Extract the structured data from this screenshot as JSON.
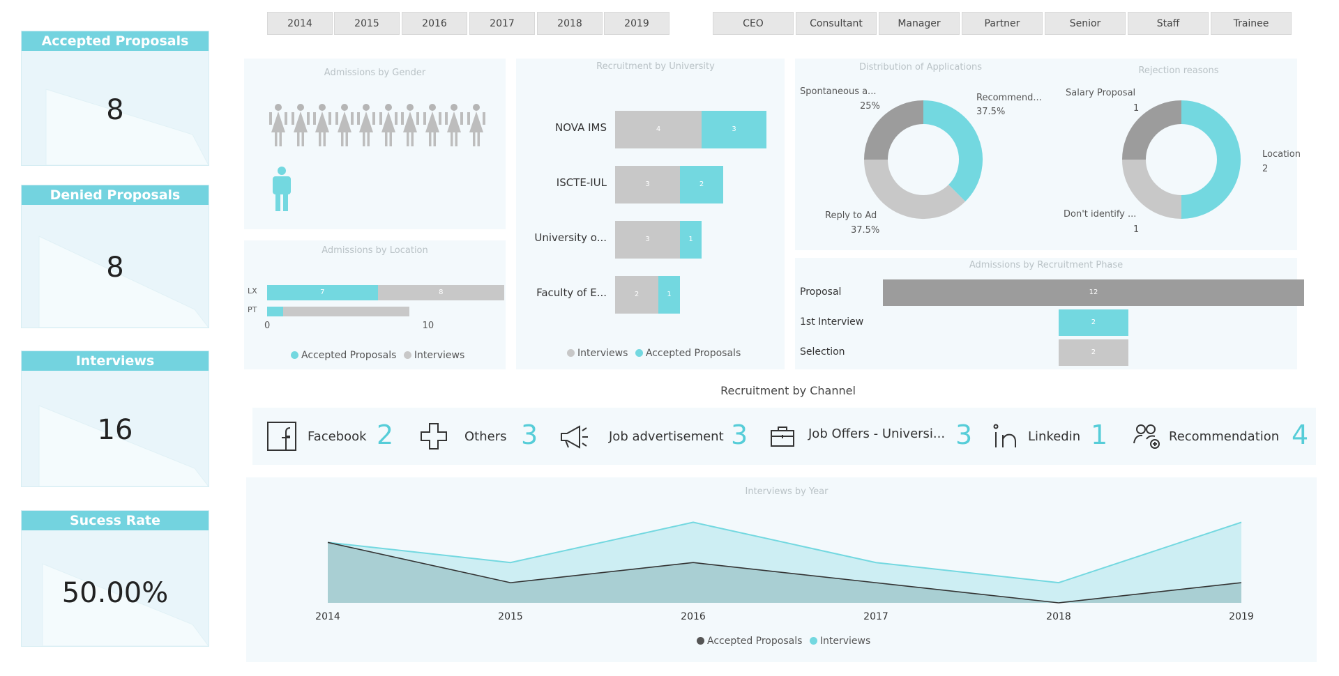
{
  "kpis": [
    {
      "title": "Accepted Proposals",
      "value": "8"
    },
    {
      "title": "Denied Proposals",
      "value": "8"
    },
    {
      "title": "Interviews",
      "value": "16"
    },
    {
      "title": "Sucess Rate",
      "value": "50.00%"
    }
  ],
  "year_filters": [
    "2014",
    "2015",
    "2016",
    "2017",
    "2018",
    "2019"
  ],
  "role_filters": [
    "CEO",
    "Consultant",
    "Manager",
    "Partner",
    "Senior",
    "Staff",
    "Trainee"
  ],
  "colors": {
    "teal": "#73d8e0",
    "grey": "#c8c8c8",
    "dark_grey": "#9c9c9c",
    "line": "#333333"
  },
  "gender_panel": {
    "title": "Admissions by Gender",
    "female_count": 10,
    "male_count": 1
  },
  "location_panel": {
    "title": "Admissions by Location",
    "legend": [
      "Accepted Proposals",
      "Interviews"
    ],
    "x_ticks": [
      "0",
      "10"
    ]
  },
  "university_panel": {
    "title": "Recruitment by University",
    "legend": [
      "Interviews",
      "Accepted Proposals"
    ]
  },
  "channel_title": "Recruitment by Channel",
  "channels": [
    {
      "icon": "facebook-icon",
      "label": "Facebook",
      "value": "2"
    },
    {
      "icon": "plus-icon",
      "label": "Others",
      "value": "3"
    },
    {
      "icon": "megaphone-icon",
      "label": "Job advertisement",
      "value": "3"
    },
    {
      "icon": "briefcase-icon",
      "label": "Job Offers - Universi...",
      "value": "3"
    },
    {
      "icon": "linkedin-icon",
      "label": "Linkedin",
      "value": "1"
    },
    {
      "icon": "people-icon",
      "label": "Recommendation",
      "value": "4"
    }
  ],
  "line_panel": {
    "title": "Interviews by Year",
    "legend": [
      "Accepted Proposals",
      "Interviews"
    ]
  },
  "chart_data": [
    {
      "type": "bar",
      "title": "Admissions by Location",
      "orientation": "horizontal",
      "stacked": true,
      "categories": [
        "LX",
        "PT"
      ],
      "series": [
        {
          "name": "Accepted Proposals",
          "values": [
            7,
            1
          ]
        },
        {
          "name": "Interviews",
          "values": [
            8,
            8
          ]
        }
      ],
      "xlim": [
        0,
        15
      ],
      "labels": [
        "7",
        "8"
      ]
    },
    {
      "type": "bar",
      "title": "Recruitment by University",
      "orientation": "horizontal",
      "stacked": true,
      "categories": [
        "NOVA IMS",
        "ISCTE-IUL",
        "University o...",
        "Faculty of E..."
      ],
      "series": [
        {
          "name": "Interviews",
          "values": [
            4,
            3,
            3,
            2
          ]
        },
        {
          "name": "Accepted Proposals",
          "values": [
            3,
            2,
            1,
            1
          ]
        }
      ]
    },
    {
      "type": "pie",
      "title": "Distribution of Applications",
      "donut": true,
      "slices": [
        {
          "label": "Recommend...",
          "value": 37.5,
          "display": "37.5%",
          "color": "#73d8e0"
        },
        {
          "label": "Reply to Ad",
          "value": 37.5,
          "display": "37.5%",
          "color": "#c8c8c8"
        },
        {
          "label": "Spontaneous a...",
          "value": 25,
          "display": "25%",
          "color": "#9c9c9c"
        }
      ]
    },
    {
      "type": "pie",
      "title": "Rejection reasons",
      "donut": true,
      "slices": [
        {
          "label": "Location",
          "value": 2,
          "display": "2",
          "color": "#73d8e0"
        },
        {
          "label": "Don't identify ...",
          "value": 1,
          "display": "1",
          "color": "#c8c8c8"
        },
        {
          "label": "Salary Proposal",
          "value": 1,
          "display": "1",
          "color": "#9c9c9c"
        }
      ]
    },
    {
      "type": "bar",
      "title": "Admissions by Recruitment Phase",
      "orientation": "horizontal",
      "categories": [
        "Proposal",
        "1st Interview",
        "Selection"
      ],
      "values": [
        12,
        2,
        2
      ],
      "labels": [
        "12",
        "2",
        "2"
      ]
    },
    {
      "type": "area",
      "title": "Interviews by Year",
      "x": [
        "2014",
        "2015",
        "2016",
        "2017",
        "2018",
        "2019"
      ],
      "series": [
        {
          "name": "Interviews",
          "values": [
            3,
            2,
            4,
            2,
            1,
            4
          ]
        },
        {
          "name": "Accepted Proposals",
          "values": [
            3,
            1,
            2,
            1,
            0,
            1
          ]
        }
      ],
      "ylim": [
        0,
        4.5
      ]
    }
  ]
}
